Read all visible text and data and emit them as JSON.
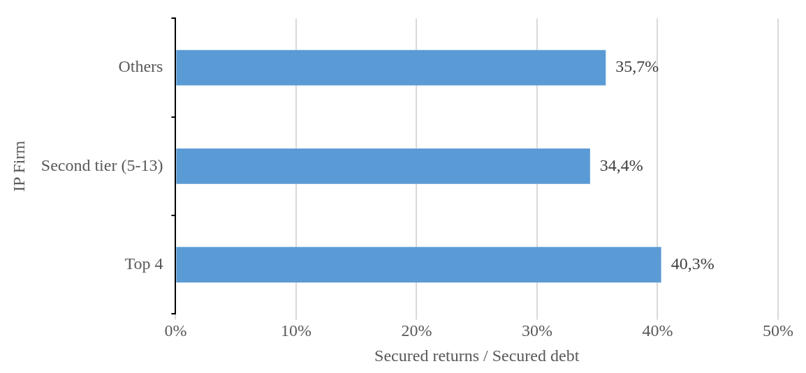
{
  "chart_data": {
    "type": "bar",
    "orientation": "horizontal",
    "xlabel": "Secured returns / Secured debt",
    "ylabel": "IP Firm",
    "categories": [
      "Others",
      "Second tier (5-13)",
      "Top 4"
    ],
    "values": [
      35.7,
      34.4,
      40.3
    ],
    "color": "#5b9bd5",
    "value_labels": [
      "35,7%",
      "34,4%",
      "40,3%"
    ],
    "xlim": [
      0,
      50
    ],
    "xticks": [
      {
        "value": 0,
        "label": "0%"
      },
      {
        "value": 10,
        "label": "10%"
      },
      {
        "value": 20,
        "label": "20%"
      },
      {
        "value": 30,
        "label": "30%"
      },
      {
        "value": 40,
        "label": "40%"
      },
      {
        "value": 50,
        "label": "50%"
      }
    ],
    "grid": "x",
    "legend": false
  }
}
